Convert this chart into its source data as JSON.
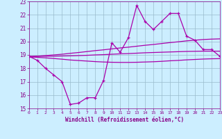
{
  "x": [
    0,
    1,
    2,
    3,
    4,
    5,
    6,
    7,
    8,
    9,
    10,
    11,
    12,
    13,
    14,
    15,
    16,
    17,
    18,
    19,
    20,
    21,
    22,
    23
  ],
  "windchill": [
    18.9,
    18.6,
    18.0,
    17.5,
    17.0,
    15.3,
    15.4,
    15.8,
    15.8,
    17.1,
    19.9,
    19.2,
    20.3,
    22.7,
    21.5,
    20.9,
    21.5,
    22.1,
    22.1,
    20.4,
    20.1,
    19.4,
    19.4,
    18.9
  ],
  "reg_upper": [
    18.85,
    18.9,
    18.95,
    19.0,
    19.05,
    19.12,
    19.18,
    19.25,
    19.32,
    19.38,
    19.45,
    19.52,
    19.58,
    19.65,
    19.72,
    19.78,
    19.85,
    19.92,
    19.98,
    20.05,
    20.1,
    20.15,
    20.18,
    20.2
  ],
  "reg_mid": [
    18.9,
    18.9,
    18.9,
    18.9,
    18.92,
    18.93,
    18.95,
    18.97,
    19.0,
    19.02,
    19.05,
    19.08,
    19.1,
    19.13,
    19.16,
    19.18,
    19.2,
    19.22,
    19.24,
    19.26,
    19.27,
    19.28,
    19.28,
    19.28
  ],
  "reg_lower": [
    18.85,
    18.82,
    18.78,
    18.73,
    18.68,
    18.62,
    18.58,
    18.54,
    18.5,
    18.47,
    18.45,
    18.44,
    18.44,
    18.45,
    18.47,
    18.49,
    18.52,
    18.56,
    18.59,
    18.63,
    18.66,
    18.69,
    18.71,
    18.72
  ],
  "line_color": "#aa00aa",
  "bg_color": "#cceeff",
  "grid_color": "#99bbcc",
  "text_color": "#880088",
  "xlabel": "Windchill (Refroidissement éolien,°C)",
  "ylim": [
    15,
    23
  ],
  "xlim": [
    0,
    23
  ],
  "yticks": [
    15,
    16,
    17,
    18,
    19,
    20,
    21,
    22,
    23
  ],
  "xticks": [
    0,
    1,
    2,
    3,
    4,
    5,
    6,
    7,
    8,
    9,
    10,
    11,
    12,
    13,
    14,
    15,
    16,
    17,
    18,
    19,
    20,
    21,
    22,
    23
  ]
}
